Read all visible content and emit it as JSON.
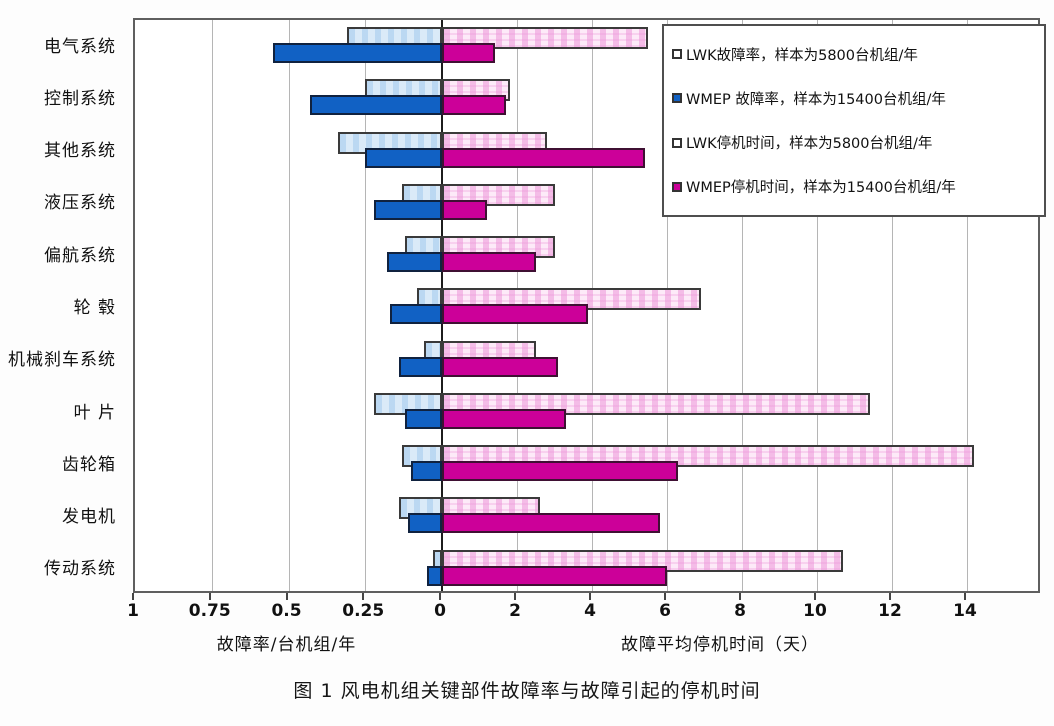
{
  "figure": {
    "caption": "图 1  风电机组关键部件故障率与故障引起的停机时间"
  },
  "chart_data": {
    "type": "bar",
    "orientation": "horizontal-bidirectional",
    "title": "",
    "grid": true,
    "legend_position": "top-right",
    "categories": [
      "电气系统",
      "控制系统",
      "其他系统",
      "液压系统",
      "偏航系统",
      "轮 毂",
      "机械刹车系统",
      "叶 片",
      "齿轮箱",
      "发电机",
      "传动系统"
    ],
    "series": [
      {
        "name": "LWK故障率，样本为5800台机组/年",
        "side": "left",
        "swatch_color": "#ffffff",
        "values": [
          0.31,
          0.25,
          0.34,
          0.13,
          0.12,
          0.08,
          0.06,
          0.22,
          0.13,
          0.14,
          0.03
        ]
      },
      {
        "name": "WMEP 故障率，样本为15400台机组/年",
        "side": "left",
        "swatch_color": "#1161c4",
        "values": [
          0.55,
          0.43,
          0.25,
          0.22,
          0.18,
          0.17,
          0.14,
          0.12,
          0.1,
          0.11,
          0.05
        ]
      },
      {
        "name": "LWK停机时间，样本为5800台机组/年",
        "side": "right",
        "swatch_color": "#ffffff",
        "values": [
          5.5,
          1.8,
          2.8,
          3.0,
          3.0,
          6.9,
          2.5,
          11.4,
          14.2,
          2.6,
          10.7
        ]
      },
      {
        "name": "WMEP停机时间，样本为15400台机组/年",
        "side": "right",
        "swatch_color": "#cc0099",
        "values": [
          1.4,
          1.7,
          5.4,
          1.2,
          2.5,
          3.9,
          3.1,
          3.3,
          6.3,
          5.8,
          6.0
        ]
      }
    ],
    "left_axis": {
      "label": "故障率/台机组/年",
      "max": 1,
      "grid_values": [
        0.75,
        0.5,
        0.25
      ],
      "ticks": [
        {
          "label": "1",
          "value": 1
        },
        {
          "label": "0.75",
          "value": 0.75
        },
        {
          "label": "0.5",
          "value": 0.5
        },
        {
          "label": "0.25",
          "value": 0.25
        }
      ]
    },
    "right_axis": {
      "label": "故障平均停机时间（天）",
      "max": 16,
      "grid_values": [
        2,
        4,
        6,
        8,
        10,
        12,
        14
      ],
      "ticks": [
        {
          "label": "2",
          "value": 2
        },
        {
          "label": "4",
          "value": 4
        },
        {
          "label": "6",
          "value": 6
        },
        {
          "label": "8",
          "value": 8
        },
        {
          "label": "10",
          "value": 10
        },
        {
          "label": "12",
          "value": 12
        },
        {
          "label": "14",
          "value": 14
        }
      ]
    },
    "zero_tick_label": "0",
    "layout": {
      "zero_frac": 0.3385
    }
  },
  "colors": {
    "lwk_failure_fill": "#daeaf8",
    "wmep_failure_fill": "#1161c4",
    "lwk_downtime_fill": "#fdeaf8",
    "wmep_downtime_fill": "#cc0099",
    "zero_line": "#1c1c1c",
    "gridline": "#b5b5b5"
  }
}
